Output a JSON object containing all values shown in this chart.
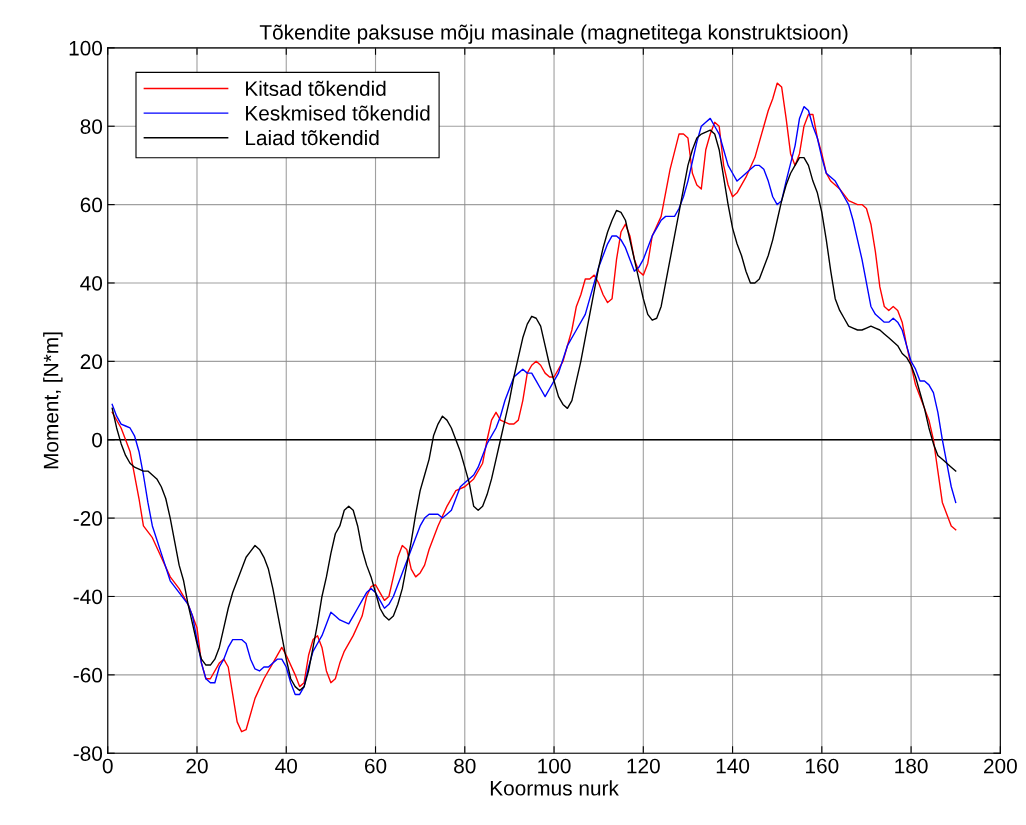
{
  "chart_data": {
    "type": "line",
    "title": "Tõkendite paksuse mõju masinale (magnetitega konstruktsioon)",
    "xlabel": "Koormus nurk",
    "ylabel": "Moment, [N*m]",
    "xlim": [
      0,
      200
    ],
    "xticks": [
      0,
      20,
      40,
      60,
      80,
      100,
      120,
      140,
      160,
      180,
      200
    ],
    "ylim": [
      -80,
      100
    ],
    "yticks": [
      -80,
      -60,
      -40,
      -20,
      0,
      20,
      40,
      60,
      80,
      100
    ],
    "grid": true,
    "legend": "top left",
    "marker": "none",
    "line_style": "solid",
    "ref_lines": [
      {
        "axis": "y",
        "value": 0,
        "color": "#000000"
      }
    ],
    "series": [
      {
        "name": "Kitsad tõkendid",
        "color": "#ff0000",
        "x": [
          1,
          3,
          5,
          7,
          8,
          10,
          12,
          14,
          16,
          18,
          20,
          21,
          22,
          23,
          25,
          26,
          27,
          28,
          29,
          30,
          31,
          33,
          35,
          37,
          39,
          40,
          42,
          43,
          44,
          45,
          46,
          47,
          48,
          49,
          50,
          51,
          52,
          53,
          55,
          57,
          58,
          59,
          60,
          61,
          62,
          63,
          64,
          65,
          66,
          67,
          68,
          69,
          70,
          71,
          72,
          74,
          76,
          78,
          80,
          82,
          84,
          85,
          86,
          87,
          88,
          90,
          91,
          92,
          93,
          94,
          95,
          96,
          97,
          98,
          99,
          100,
          102,
          104,
          105,
          106,
          107,
          108,
          109,
          110,
          111,
          112,
          113,
          114,
          115,
          116,
          117,
          118,
          119,
          120,
          121,
          122,
          124,
          126,
          128,
          129,
          130,
          131,
          132,
          133,
          134,
          135,
          136,
          137,
          138,
          139,
          140,
          141,
          143,
          145,
          147,
          148,
          149,
          150,
          151,
          152,
          153,
          154,
          155,
          156,
          157,
          158,
          159,
          160,
          161,
          162,
          164,
          166,
          168,
          169,
          170,
          171,
          172,
          173,
          174,
          175,
          176,
          177,
          178,
          179,
          180,
          181,
          182,
          183,
          184,
          185,
          186,
          187,
          188,
          189,
          190
        ],
        "values": [
          7,
          3,
          -3,
          -15,
          -22,
          -25,
          -30,
          -35,
          -38,
          -42,
          -48,
          -57,
          -61,
          -61,
          -57,
          -56,
          -58,
          -65,
          -72,
          -74.5,
          -74,
          -66,
          -61,
          -57,
          -53,
          -55,
          -60,
          -63,
          -62,
          -55,
          -51,
          -50,
          -53,
          -59,
          -62,
          -61,
          -57,
          -54,
          -50,
          -45,
          -40,
          -37.5,
          -37,
          -39,
          -41,
          -40,
          -35,
          -30,
          -27,
          -28,
          -33,
          -35,
          -34,
          -32,
          -28,
          -22,
          -17,
          -13,
          -12,
          -10,
          -6,
          0,
          5,
          7,
          5,
          4,
          4,
          5,
          10,
          17,
          19,
          20,
          19,
          17,
          16,
          16,
          20,
          28,
          34,
          37,
          41,
          41,
          42,
          40,
          37,
          35,
          36,
          46,
          53,
          55,
          52,
          46,
          43,
          42,
          45,
          52,
          57,
          69,
          78,
          78,
          77,
          68,
          65,
          64,
          74,
          78,
          81,
          80,
          70,
          65,
          62,
          63,
          67,
          72,
          80,
          84,
          87,
          91,
          90,
          82,
          73,
          70,
          73,
          80,
          83,
          83,
          77,
          73,
          68,
          66,
          64,
          61,
          60,
          60,
          59,
          55,
          48,
          39,
          34,
          33,
          34,
          33,
          30,
          24,
          19,
          14,
          11,
          8,
          5,
          0,
          -8,
          -16,
          -19,
          -22,
          -23
        ]
      },
      {
        "name": "Keskmised tõkendid",
        "color": "#0000ff",
        "x": [
          1,
          2,
          3,
          4,
          5,
          6,
          7,
          8,
          9,
          10,
          12,
          14,
          16,
          18,
          19,
          20,
          21,
          22,
          23,
          24,
          25,
          26,
          27,
          28,
          30,
          31,
          32,
          33,
          34,
          35,
          36,
          37,
          38,
          39,
          40,
          41,
          42,
          43,
          44,
          45,
          46,
          47,
          48,
          49,
          50,
          51,
          52,
          54,
          55,
          56,
          57,
          58,
          59,
          60,
          61,
          62,
          63,
          64,
          65,
          66,
          68,
          70,
          71,
          72,
          73,
          74,
          75,
          76,
          77,
          78,
          79,
          80,
          81,
          82,
          83,
          85,
          87,
          88,
          89,
          90,
          91,
          92,
          93,
          94,
          95,
          96,
          97,
          98,
          99,
          100,
          101,
          103,
          105,
          107,
          108,
          109,
          110,
          111,
          112,
          113,
          114,
          115,
          116,
          117,
          118,
          119,
          120,
          121,
          122,
          123,
          124,
          125,
          126,
          127,
          128,
          129,
          130,
          131,
          132,
          133,
          134,
          135,
          136,
          137,
          138,
          139,
          140,
          141,
          142,
          143,
          144,
          145,
          146,
          147,
          148,
          149,
          150,
          151,
          152,
          154,
          155,
          156,
          157,
          158,
          159,
          160,
          161,
          163,
          165,
          166,
          167,
          168,
          169,
          170,
          171,
          172,
          174,
          175,
          176,
          177,
          178,
          179,
          180,
          181,
          182,
          183,
          184,
          185,
          186,
          187,
          188,
          189,
          190
        ],
        "values": [
          9,
          6,
          4,
          3.5,
          3,
          1,
          -3,
          -9,
          -16,
          -22,
          -29,
          -36,
          -39,
          -42,
          -45,
          -51,
          -57,
          -61,
          -62,
          -62,
          -58,
          -56,
          -53,
          -51,
          -51,
          -52,
          -56,
          -58.5,
          -59,
          -58,
          -58,
          -57,
          -56,
          -56,
          -58,
          -62,
          -65,
          -65,
          -63,
          -58,
          -54,
          -52,
          -50,
          -47,
          -44,
          -45,
          -46,
          -47,
          -45,
          -43,
          -41,
          -39,
          -38,
          -39,
          -41,
          -43,
          -42,
          -40,
          -37,
          -34,
          -28,
          -22,
          -20,
          -19,
          -19,
          -19,
          -20,
          -19,
          -18,
          -15,
          -12,
          -11,
          -10,
          -9,
          -7,
          -1,
          3,
          6,
          10,
          13,
          16,
          17,
          18,
          17,
          17,
          15,
          13,
          11,
          13,
          15,
          17,
          24,
          28,
          32,
          36,
          40,
          44,
          47,
          50,
          52,
          52,
          51,
          49,
          46,
          43,
          44,
          46,
          49,
          52,
          54,
          56,
          57,
          57,
          57,
          59,
          62,
          66,
          71,
          76,
          80,
          81,
          82,
          80,
          78,
          74,
          70,
          68,
          66,
          67,
          68,
          69,
          70,
          70,
          69,
          66,
          62,
          60,
          61,
          66,
          75,
          82,
          85,
          84,
          80,
          77,
          72,
          68,
          66,
          62,
          60,
          56,
          51,
          46,
          40,
          34,
          32,
          30,
          30,
          31,
          30,
          28,
          24,
          20,
          18,
          15,
          15,
          14,
          12,
          7,
          0,
          -6,
          -12,
          -16
        ]
      },
      {
        "name": "Laiad tõkendid",
        "color": "#000000",
        "x": [
          1,
          2,
          3,
          4,
          5,
          6,
          7,
          8,
          9,
          10,
          11,
          12,
          13,
          14,
          15,
          16,
          17,
          18,
          19,
          20,
          21,
          22,
          23,
          24,
          25,
          26,
          27,
          28,
          29,
          30,
          31,
          32,
          33,
          34,
          35,
          36,
          37,
          38,
          39,
          40,
          41,
          42,
          43,
          44,
          45,
          46,
          47,
          48,
          49,
          50,
          51,
          52,
          53,
          54,
          55,
          56,
          57,
          58,
          59,
          60,
          61,
          62,
          63,
          64,
          65,
          66,
          67,
          68,
          69,
          70,
          71,
          72,
          73,
          74,
          75,
          76,
          77,
          78,
          79,
          80,
          81,
          82,
          83,
          84,
          85,
          86,
          87,
          88,
          89,
          90,
          91,
          92,
          93,
          94,
          95,
          96,
          97,
          98,
          99,
          100,
          101,
          102,
          103,
          104,
          105,
          106,
          107,
          108,
          109,
          110,
          111,
          112,
          113,
          114,
          115,
          116,
          117,
          118,
          119,
          120,
          121,
          122,
          123,
          124,
          125,
          126,
          127,
          128,
          129,
          130,
          131,
          132,
          133,
          134,
          135,
          136,
          137,
          138,
          139,
          140,
          141,
          142,
          143,
          144,
          145,
          146,
          147,
          148,
          149,
          150,
          151,
          152,
          153,
          154,
          155,
          156,
          157,
          158,
          159,
          160,
          161,
          162,
          163,
          164,
          165,
          166,
          167,
          168,
          169,
          170,
          171,
          172,
          173,
          174,
          175,
          176,
          177,
          178,
          179,
          180,
          181,
          182,
          183,
          184,
          185,
          186,
          187,
          188,
          189,
          190
        ],
        "values": [
          8,
          3,
          -1,
          -4,
          -6,
          -7,
          -7.5,
          -8,
          -8,
          -9,
          -10,
          -12,
          -15,
          -20,
          -26,
          -32,
          -36,
          -42,
          -47,
          -52,
          -56,
          -57.5,
          -57.5,
          -56,
          -53,
          -48,
          -43,
          -39,
          -36,
          -33,
          -30,
          -28.5,
          -27,
          -28,
          -30,
          -33,
          -38,
          -44,
          -50,
          -56,
          -61,
          -63,
          -64,
          -63,
          -59,
          -53,
          -47,
          -40,
          -35,
          -29,
          -24,
          -22,
          -18,
          -17,
          -18,
          -22,
          -28,
          -32,
          -35,
          -39,
          -43,
          -45,
          -46,
          -45,
          -42,
          -38,
          -32,
          -26,
          -19,
          -13,
          -9,
          -5,
          1,
          4,
          6,
          5,
          3,
          0,
          -3,
          -7,
          -11,
          -17,
          -18,
          -17,
          -14,
          -10,
          -5,
          0,
          5,
          10,
          16,
          21,
          26,
          29.5,
          31.5,
          31,
          29,
          24,
          19,
          15,
          11,
          9,
          8,
          10,
          15,
          20,
          26,
          32,
          38,
          44,
          49,
          53,
          56,
          58.5,
          58,
          56,
          51,
          46,
          41,
          36,
          32,
          30.5,
          31,
          34,
          40,
          46,
          52,
          58,
          64,
          70,
          74,
          77,
          78,
          78.5,
          79,
          78,
          74,
          67,
          60,
          54,
          50,
          47,
          43,
          40,
          40,
          41,
          44,
          47,
          51,
          56,
          61,
          65,
          68,
          70,
          72,
          72,
          70,
          66,
          63,
          58,
          51,
          43,
          36,
          33,
          31,
          29,
          28.5,
          28,
          28,
          28.5,
          29,
          28.5,
          28,
          27,
          26,
          25,
          24,
          22,
          21,
          19,
          16,
          12,
          8,
          3,
          -1,
          -4,
          -5,
          -6,
          -7,
          -8
        ]
      }
    ]
  }
}
